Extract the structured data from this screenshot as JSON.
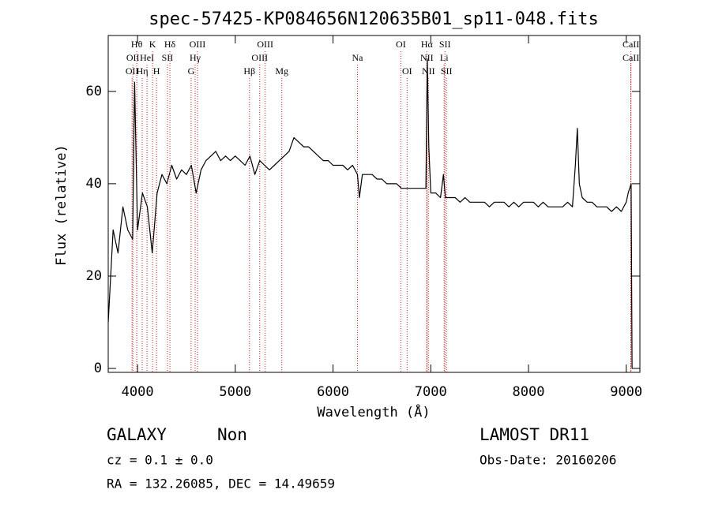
{
  "chart_data": {
    "type": "line",
    "title": "spec-57425-KP084656N120635B01_sp11-048.fits",
    "x_label": "Wavelength (Å)",
    "y_label": "Flux (relative)",
    "xlim": [
      3700,
      9140
    ],
    "ylim": [
      -0.85,
      72.1
    ],
    "xticks": [
      4000,
      5000,
      6000,
      7000,
      8000,
      9000
    ],
    "yticks": [
      0,
      20,
      40,
      60
    ],
    "x": [
      3700,
      3750,
      3800,
      3850,
      3900,
      3950,
      3970,
      4000,
      4050,
      4100,
      4150,
      4200,
      4250,
      4300,
      4350,
      4400,
      4450,
      4500,
      4550,
      4600,
      4650,
      4700,
      4750,
      4800,
      4850,
      4900,
      4950,
      5000,
      5050,
      5100,
      5150,
      5200,
      5250,
      5300,
      5350,
      5400,
      5450,
      5500,
      5550,
      5600,
      5650,
      5700,
      5750,
      5800,
      5850,
      5900,
      5950,
      6000,
      6050,
      6100,
      6150,
      6200,
      6250,
      6270,
      6300,
      6350,
      6400,
      6450,
      6500,
      6550,
      6600,
      6650,
      6700,
      6750,
      6800,
      6850,
      6900,
      6950,
      6965,
      6980,
      7000,
      7050,
      7100,
      7130,
      7150,
      7200,
      7250,
      7300,
      7350,
      7400,
      7450,
      7500,
      7550,
      7600,
      7650,
      7700,
      7750,
      7800,
      7850,
      7900,
      7950,
      8000,
      8050,
      8100,
      8150,
      8200,
      8250,
      8300,
      8350,
      8400,
      8450,
      8480,
      8500,
      8520,
      8550,
      8600,
      8650,
      8700,
      8750,
      8800,
      8850,
      8900,
      8950,
      9000,
      9020,
      9050,
      9060
    ],
    "series": [
      {
        "name": "Flux",
        "color": "#000000",
        "values": [
          10,
          30,
          25,
          35,
          30,
          28,
          62,
          30,
          38,
          35,
          25,
          38,
          42,
          40,
          44,
          41,
          43,
          42,
          44,
          38,
          43,
          45,
          46,
          47,
          45,
          46,
          45,
          46,
          45,
          44,
          46,
          42,
          45,
          44,
          43,
          44,
          45,
          46,
          47,
          50,
          49,
          48,
          48,
          47,
          46,
          45,
          45,
          44,
          44,
          44,
          43,
          44,
          42,
          37,
          42,
          42,
          42,
          41,
          41,
          40,
          40,
          40,
          39,
          39,
          39,
          39,
          39,
          39,
          67,
          48,
          38,
          38,
          37,
          42,
          37,
          37,
          37,
          36,
          37,
          36,
          36,
          36,
          36,
          35,
          36,
          36,
          36,
          35,
          36,
          35,
          36,
          36,
          36,
          35,
          36,
          35,
          35,
          35,
          35,
          36,
          35,
          44,
          52,
          40,
          37,
          36,
          36,
          35,
          35,
          35,
          34,
          35,
          34,
          36,
          38,
          40,
          0
        ]
      }
    ],
    "line_color": "#cc2222",
    "line_labels": [
      [
        {
          "label": "Hθ",
          "wavelength": 3992
        },
        {
          "label": "K",
          "wavelength": 4153
        },
        {
          "label": "Hδ",
          "wavelength": 4331
        },
        {
          "label": "OIII",
          "wavelength": 4613
        },
        {
          "label": "OIII",
          "wavelength": 5306
        },
        {
          "label": "OI",
          "wavelength": 6694
        },
        {
          "label": "Hα",
          "wavelength": 6960
        },
        {
          "label": "SII",
          "wavelength": 7145
        },
        {
          "label": "CaII",
          "wavelength": 9048
        }
      ],
      [
        {
          "label": "OII",
          "wavelength": 3952
        },
        {
          "label": "HeI",
          "wavelength": 4097
        },
        {
          "label": "SII",
          "wavelength": 4306
        },
        {
          "label": "Hγ",
          "wavelength": 4589
        },
        {
          "label": "OIII",
          "wavelength": 5250
        },
        {
          "label": "Na",
          "wavelength": 6250
        },
        {
          "label": "NII",
          "wavelength": 6960
        },
        {
          "label": "Li",
          "wavelength": 7137
        },
        {
          "label": "CaII",
          "wavelength": 9048
        }
      ],
      [
        {
          "label": "OII",
          "wavelength": 3944
        },
        {
          "label": "Hη",
          "wavelength": 4048
        },
        {
          "label": "H",
          "wavelength": 4194
        },
        {
          "label": "G",
          "wavelength": 4548
        },
        {
          "label": "Hβ",
          "wavelength": 5145
        },
        {
          "label": "Mg",
          "wavelength": 5476
        },
        {
          "label": "OI",
          "wavelength": 6758
        },
        {
          "label": "NII",
          "wavelength": 6976
        },
        {
          "label": "SII",
          "wavelength": 7161
        }
      ]
    ]
  },
  "info": {
    "class": "GALAXY",
    "subclass": "Non",
    "survey": "LAMOST DR11",
    "cz": "cz = 0.1 ± 0.0",
    "obs_date": "Obs-Date: 20160206",
    "coords": "RA = 132.26085, DEC =  14.49659"
  }
}
